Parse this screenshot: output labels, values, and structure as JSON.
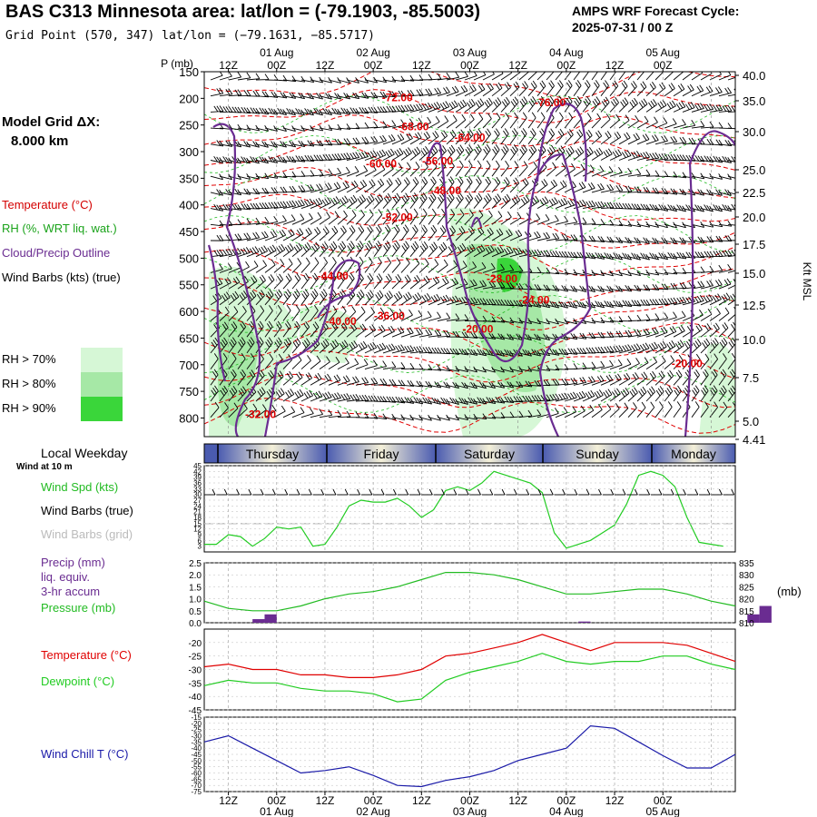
{
  "header": {
    "title": "BAS C313 Minnesota area:  lat/lon = (-79.1903, -85.5003)",
    "subtitle": "Grid Point (570, 347) lat/lon = (−79.1631, −85.5717)",
    "forecast_label": "AMPS WRF Forecast Cycle:",
    "forecast_cycle": "2025-07-31 / 00  Z"
  },
  "model_grid": {
    "label": "Model Grid ΔX:",
    "value": "8.000 km"
  },
  "legend_left": [
    {
      "text": "Temperature (°C)",
      "color": "#d40000"
    },
    {
      "text": "RH (%, WRT liq. wat.)",
      "color": "#1aa31a"
    },
    {
      "text": "Cloud/Precip Outline",
      "color": "#6a2c91"
    },
    {
      "text": "Wind Barbs (kts) (true)",
      "color": "#000000"
    }
  ],
  "rh_legend": [
    {
      "text": "RH > 70%",
      "color": "#d6f7d6"
    },
    {
      "text": "RH > 80%",
      "color": "#a6e8a6"
    },
    {
      "text": "RH > 90%",
      "color": "#3ad63a"
    }
  ],
  "time_axis": {
    "top_hours": [
      "12Z",
      "00Z",
      "12Z",
      "00Z",
      "12Z",
      "00Z",
      "12Z",
      "00Z",
      "12Z",
      "00Z"
    ],
    "top_dates": [
      "01 Aug",
      "02 Aug",
      "03 Aug",
      "04 Aug",
      "05 Aug"
    ],
    "bottom_hours": [
      "12Z",
      "00Z",
      "12Z",
      "00Z",
      "12Z",
      "00Z",
      "12Z",
      "00Z",
      "12Z",
      "00Z"
    ],
    "bottom_dates": [
      "01 Aug",
      "02 Aug",
      "03 Aug",
      "04 Aug",
      "05 Aug"
    ]
  },
  "weekday_bar": {
    "label": "Local Weekday",
    "days": [
      "Thursday",
      "Friday",
      "Saturday",
      "Sunday",
      "Monday"
    ],
    "wind_note": "Wind at 10 m"
  },
  "colors": {
    "temperature": "#e00000",
    "rh": "#22bb22",
    "cloud": "#6a2c91",
    "dewpoint": "#22cc22",
    "windchill": "#1a1aa8",
    "pressure": "#22bb22",
    "precip": "#6a2c91",
    "wind": "#22cc22"
  },
  "chart_data": [
    {
      "type": "heatmap",
      "ylabel_left": "P (mb)",
      "ylabel_right": "Kft MSL",
      "pressure_ticks": [
        "150",
        "200",
        "250",
        "300",
        "350",
        "400",
        "450",
        "500",
        "550",
        "600",
        "650",
        "700",
        "750",
        "800"
      ],
      "kft_ticks": [
        "40.0",
        "35.0",
        "30.0",
        "25.0",
        "22.5",
        "20.0",
        "17.5",
        "15.0",
        "12.5",
        "10.0",
        "7.5",
        "5.0",
        "4.41"
      ],
      "temperature_labels": [
        {
          "label": "-72.00",
          "hour": 48,
          "p": 205
        },
        {
          "label": "-68.00",
          "hour": 52,
          "p": 260
        },
        {
          "label": "-64.00",
          "hour": 66,
          "p": 280
        },
        {
          "label": "-76.00",
          "hour": 86,
          "p": 215
        },
        {
          "label": "-60.00",
          "hour": 44,
          "p": 330
        },
        {
          "label": "-56.00",
          "hour": 58,
          "p": 325
        },
        {
          "label": "-48.00",
          "hour": 60,
          "p": 380
        },
        {
          "label": "-52.00",
          "hour": 48,
          "p": 430
        },
        {
          "label": "-44.00",
          "hour": 32,
          "p": 540
        },
        {
          "label": "-40.00",
          "hour": 34,
          "p": 625
        },
        {
          "label": "-36.00",
          "hour": 46,
          "p": 615
        },
        {
          "label": "-28.00",
          "hour": 74,
          "p": 545
        },
        {
          "label": "-24.00",
          "hour": 82,
          "p": 585
        },
        {
          "label": "-20.00",
          "hour": 68,
          "p": 640
        },
        {
          "label": "-20.00",
          "hour": 120,
          "p": 705
        },
        {
          "label": "-32.00",
          "hour": 14,
          "p": 800
        }
      ]
    },
    {
      "type": "line",
      "ylabel": "Wind Spd (kts)",
      "labels": [
        "Wind Spd (kts)",
        "Wind Barbs (true)",
        "Wind Barbs (grid)"
      ],
      "yticks": [
        "45",
        "42",
        "39",
        "36",
        "33",
        "30",
        "27",
        "24",
        "21",
        "18",
        "15",
        "12",
        "9",
        "6",
        "3"
      ],
      "ylim": [
        0,
        45
      ],
      "x": [
        0,
        3,
        6,
        9,
        12,
        15,
        18,
        21,
        24,
        27,
        30,
        33,
        36,
        39,
        42,
        45,
        48,
        51,
        54,
        57,
        60,
        63,
        66,
        69,
        72,
        75,
        78,
        81,
        84,
        87,
        90,
        93,
        96,
        99,
        102,
        105,
        108,
        111,
        114,
        117,
        120,
        123,
        126,
        129
      ],
      "values": [
        4,
        4,
        9,
        8,
        3,
        7,
        13,
        12,
        13,
        3,
        4,
        13,
        24,
        27,
        26,
        26,
        28,
        24,
        18,
        22,
        32,
        34,
        32,
        36,
        42,
        40,
        38,
        36,
        31,
        10,
        2,
        4,
        6,
        10,
        14,
        25,
        40,
        42,
        40,
        34,
        18,
        5,
        4,
        3
      ]
    },
    {
      "type": "line",
      "labels": [
        "Precip (mm)",
        "liq. equiv.",
        "3-hr accum",
        "Pressure (mb)"
      ],
      "yticks_left": [
        "2.5",
        "2.0",
        "1.5",
        "1.0",
        "0.5",
        "0.0"
      ],
      "yticks_right": [
        "835",
        "830",
        "825",
        "820",
        "815",
        "810"
      ],
      "unit_right": "(mb)",
      "ylim_precip": [
        0,
        2.5
      ],
      "ylim_pressure": [
        810,
        835
      ],
      "x": [
        0,
        6,
        12,
        18,
        24,
        30,
        36,
        42,
        48,
        54,
        60,
        66,
        72,
        78,
        84,
        90,
        96,
        102,
        108,
        114,
        120,
        126,
        132
      ],
      "pressure": [
        819,
        816,
        815,
        815,
        817,
        820,
        822,
        823,
        825,
        828,
        831,
        831,
        830,
        828,
        825,
        822,
        822,
        823,
        824,
        824,
        822,
        819,
        817
      ],
      "precip_bars": [
        {
          "start": 12,
          "end": 15,
          "value": 0.15
        },
        {
          "start": 15,
          "end": 18,
          "value": 0.35
        },
        {
          "start": 93,
          "end": 96,
          "value": 0.05
        },
        {
          "start": 135,
          "end": 138,
          "value": 0.35
        },
        {
          "start": 138,
          "end": 141,
          "value": 0.7
        }
      ]
    },
    {
      "type": "line",
      "labels": [
        "Temperature (°C)",
        "Dewpoint (°C)"
      ],
      "yticks": [
        "-20",
        "-25",
        "-30",
        "-35",
        "-40",
        "-45"
      ],
      "ylim": [
        -45,
        -15
      ],
      "x": [
        0,
        6,
        12,
        18,
        24,
        30,
        36,
        42,
        48,
        54,
        60,
        66,
        72,
        78,
        84,
        90,
        96,
        102,
        108,
        114,
        120,
        126,
        132
      ],
      "temperature": [
        -29,
        -28,
        -30,
        -30,
        -32,
        -32,
        -33,
        -33,
        -32,
        -30,
        -25,
        -24,
        -22,
        -20,
        -17,
        -20,
        -23,
        -20,
        -20,
        -20,
        -21,
        -24,
        -27
      ],
      "dewpoint": [
        -36,
        -34,
        -35,
        -35,
        -37,
        -38,
        -38,
        -39,
        -42,
        -41,
        -34,
        -31,
        -29,
        -27,
        -24,
        -27,
        -28,
        -27,
        -27,
        -25,
        -25,
        -28,
        -30
      ]
    },
    {
      "type": "line",
      "labels": [
        "Wind Chill T (°C)"
      ],
      "yticks": [
        "-15",
        "-20",
        "-25",
        "-30",
        "-35",
        "-40",
        "-45",
        "-50",
        "-55",
        "-60",
        "-65",
        "-70",
        "-75"
      ],
      "ylim": [
        -75,
        -15
      ],
      "x": [
        0,
        6,
        12,
        18,
        24,
        30,
        36,
        42,
        48,
        54,
        60,
        66,
        72,
        78,
        84,
        90,
        96,
        102,
        108,
        114,
        120,
        126,
        132
      ],
      "values": [
        -35,
        -30,
        -40,
        -50,
        -60,
        -58,
        -55,
        -62,
        -70,
        -71,
        -66,
        -63,
        -58,
        -50,
        -45,
        -40,
        -22,
        -24,
        -35,
        -46,
        -56,
        -56,
        -45
      ]
    }
  ]
}
